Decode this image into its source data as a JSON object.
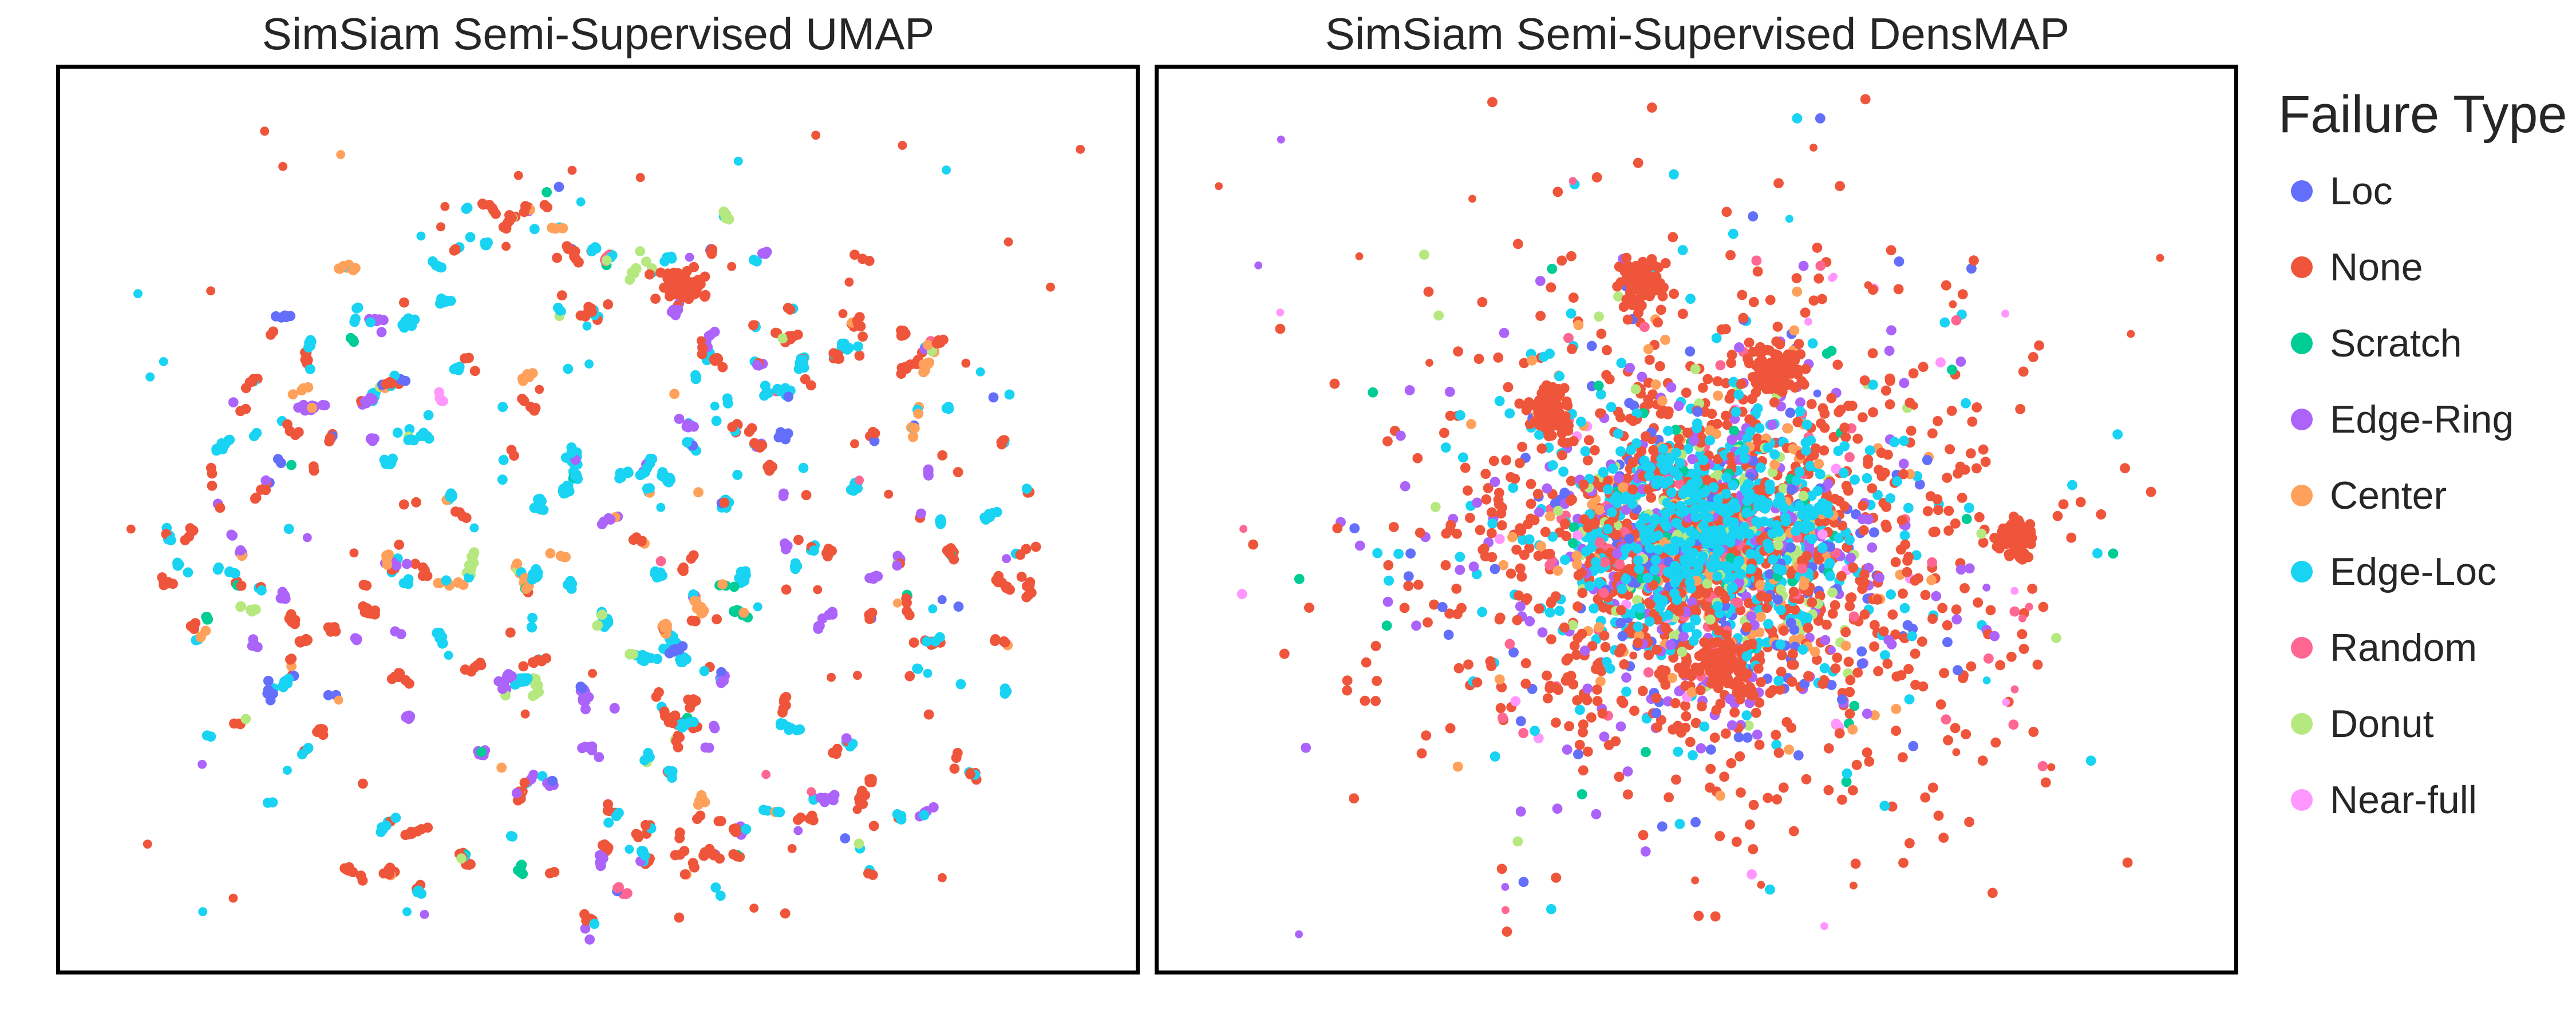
{
  "chart_data": [
    {
      "type": "scatter",
      "title": "SimSiam Semi-Supervised UMAP",
      "xlabel": "",
      "ylabel": "",
      "grid": false,
      "axes_ticks": false
    },
    {
      "type": "scatter",
      "title": "SimSiam Semi-Supervised DensMAP",
      "xlabel": "",
      "ylabel": "",
      "grid": false,
      "axes_ticks": false
    }
  ],
  "legend": {
    "title": "Failure Type",
    "placement": "right",
    "items": [
      {
        "label": "Loc",
        "color": "#636efa"
      },
      {
        "label": "None",
        "color": "#ef553b"
      },
      {
        "label": "Scratch",
        "color": "#00cc96"
      },
      {
        "label": "Edge-Ring",
        "color": "#ab63fa"
      },
      {
        "label": "Center",
        "color": "#ffa15a"
      },
      {
        "label": "Edge-Loc",
        "color": "#19d3f3"
      },
      {
        "label": "Random",
        "color": "#ff6692"
      },
      {
        "label": "Donut",
        "color": "#b6e880"
      },
      {
        "label": "Near-full",
        "color": "#ff97ff"
      }
    ]
  }
}
